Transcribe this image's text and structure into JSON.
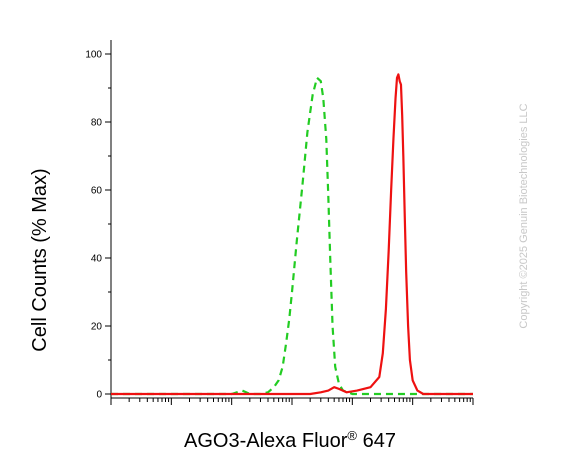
{
  "chart_data": {
    "type": "line",
    "title": "",
    "xlabel_main": "AGO3-Alexa Fluor",
    "xlabel_sup": "®",
    "xlabel_tail": " 647",
    "ylabel": "Cell Counts (% Max)",
    "xscale": "log",
    "xlim": [
      1,
      1000000
    ],
    "ylim": [
      0,
      105
    ],
    "yticks": [
      0,
      20,
      40,
      60,
      80,
      100
    ],
    "ytick_labels": [
      "0",
      "20",
      "40",
      "60",
      "80",
      "100"
    ],
    "grid": false,
    "legend": "none",
    "series": [
      {
        "style": "dashed",
        "color": "#22cc22",
        "x": [
          1,
          100,
          150,
          200,
          300,
          400,
          500,
          600,
          700,
          800,
          900,
          1000,
          1200,
          1500,
          1800,
          2200,
          2600,
          3000,
          3300,
          3700,
          4000,
          4300,
          4700,
          5200,
          6000,
          7000,
          8500,
          10000,
          13000,
          20000,
          50000,
          1000000
        ],
        "y": [
          0,
          0,
          1,
          0,
          0,
          0.5,
          2,
          4,
          8,
          15,
          22,
          30,
          45,
          62,
          77,
          88,
          93,
          92,
          87,
          75,
          58,
          40,
          20,
          8,
          3,
          1,
          0.5,
          0,
          0,
          0,
          0,
          0
        ]
      },
      {
        "style": "solid",
        "color": "#ee1111",
        "x": [
          1,
          2000,
          3000,
          4000,
          5000,
          6000,
          8000,
          12000,
          20000,
          28000,
          32000,
          36000,
          40000,
          44000,
          48000,
          52000,
          55000,
          58000,
          61000,
          64000,
          67000,
          70000,
          74000,
          78000,
          84000,
          90000,
          100000,
          120000,
          150000,
          200000,
          400000,
          1000000
        ],
        "y": [
          0,
          0,
          0.5,
          1,
          2,
          1.5,
          0.5,
          1,
          2,
          5,
          12,
          25,
          42,
          60,
          75,
          87,
          93,
          94,
          92,
          91,
          82,
          70,
          52,
          36,
          20,
          10,
          4,
          1,
          0,
          0,
          0,
          0
        ]
      }
    ]
  },
  "watermark": "Copyright ©2025 Genuin Biotechnologies LLC"
}
